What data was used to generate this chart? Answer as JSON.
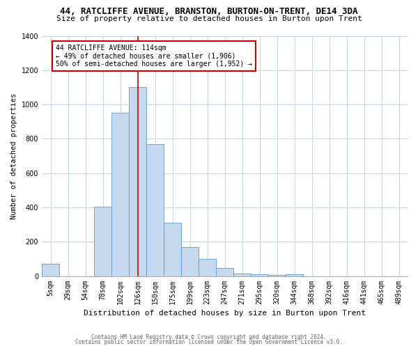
{
  "title": "44, RATCLIFFE AVENUE, BRANSTON, BURTON-ON-TRENT, DE14 3DA",
  "subtitle": "Size of property relative to detached houses in Burton upon Trent",
  "xlabel": "Distribution of detached houses by size in Burton upon Trent",
  "ylabel": "Number of detached properties",
  "categories": [
    "5sqm",
    "29sqm",
    "54sqm",
    "78sqm",
    "102sqm",
    "126sqm",
    "150sqm",
    "175sqm",
    "199sqm",
    "223sqm",
    "247sqm",
    "271sqm",
    "295sqm",
    "320sqm",
    "344sqm",
    "368sqm",
    "392sqm",
    "416sqm",
    "441sqm",
    "465sqm",
    "489sqm"
  ],
  "values": [
    70,
    0,
    0,
    405,
    950,
    1100,
    770,
    310,
    170,
    100,
    45,
    15,
    10,
    5,
    10,
    0,
    0,
    0,
    0,
    0,
    0
  ],
  "bar_color": "#c5d8ed",
  "bar_edge_color": "#5b9bd5",
  "ylim": [
    0,
    1400
  ],
  "yticks": [
    0,
    200,
    400,
    600,
    800,
    1000,
    1200,
    1400
  ],
  "vline_x_index": 5,
  "vline_color": "#cc0000",
  "annotation_text": "44 RATCLIFFE AVENUE: 114sqm\n← 49% of detached houses are smaller (1,906)\n50% of semi-detached houses are larger (1,952) →",
  "annotation_box_color": "#ffffff",
  "annotation_box_edge": "#cc0000",
  "footer1": "Contains HM Land Registry data © Crown copyright and database right 2024.",
  "footer2": "Contains public sector information licensed under the Open Government Licence v3.0.",
  "background_color": "#ffffff",
  "grid_color": "#c8d8e8",
  "title_fontsize": 9,
  "subtitle_fontsize": 8,
  "xlabel_fontsize": 8,
  "ylabel_fontsize": 7.5,
  "tick_fontsize": 7,
  "ann_fontsize": 7,
  "footer_fontsize": 5.5
}
